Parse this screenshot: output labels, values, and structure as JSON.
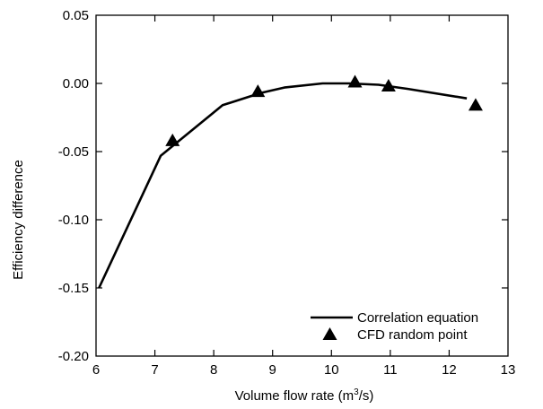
{
  "chart_data": {
    "type": "line",
    "title": "",
    "xlabel": "Volume flow rate (m³/s)",
    "xlabel_parts": {
      "pre": "Volume flow rate (m",
      "sup": "3",
      "post": "/s)"
    },
    "ylabel": "Efficiency difference",
    "xlim": [
      6,
      13
    ],
    "ylim": [
      -0.2,
      0.05
    ],
    "xticks": [
      6,
      7,
      8,
      9,
      10,
      11,
      12,
      13
    ],
    "xtick_labels": [
      "6",
      "7",
      "8",
      "9",
      "10",
      "11",
      "12",
      "13"
    ],
    "yticks": [
      0.05,
      0.0,
      -0.05,
      -0.1,
      -0.15,
      -0.2
    ],
    "ytick_labels": [
      "0.05",
      "0.00",
      "-0.05",
      "-0.10",
      "-0.15",
      "-0.20"
    ],
    "grid": false,
    "legend_position": "bottom-right",
    "series": [
      {
        "name": "Correlation equation",
        "style": "line",
        "color": "#000000",
        "x": [
          6.05,
          7.1,
          8.15,
          8.8,
          9.2,
          9.85,
          10.3,
          10.8,
          11.3,
          12.3
        ],
        "y": [
          -0.15,
          -0.053,
          -0.016,
          -0.007,
          -0.003,
          0.0,
          0.0,
          -0.001,
          -0.004,
          -0.011
        ]
      },
      {
        "name": "CFD random point",
        "style": "marker",
        "marker": "triangle",
        "color": "#000000",
        "x": [
          7.3,
          8.75,
          10.4,
          10.97,
          12.45
        ],
        "y": [
          -0.042,
          -0.006,
          0.001,
          -0.002,
          -0.016
        ]
      }
    ]
  }
}
